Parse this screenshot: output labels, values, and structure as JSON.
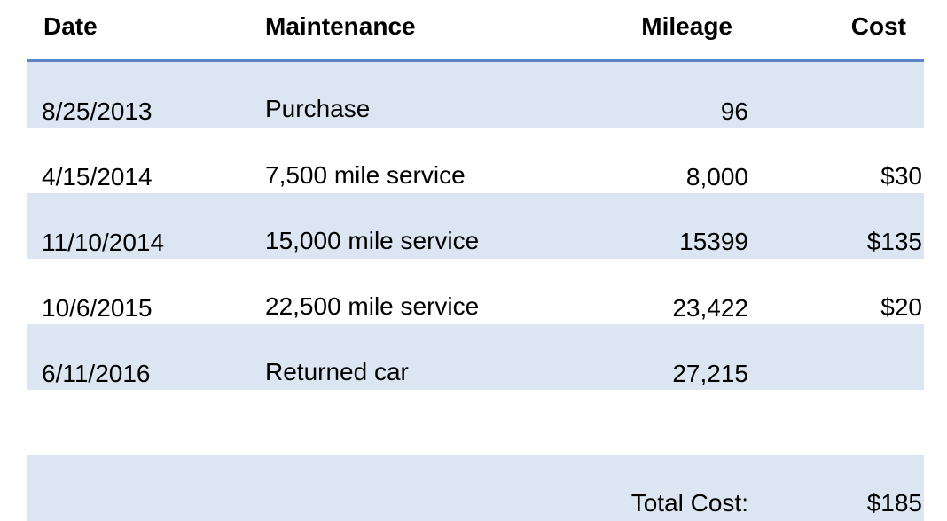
{
  "headers": {
    "date": "Date",
    "maintenance": "Maintenance",
    "mileage": "Mileage",
    "cost": "Cost"
  },
  "rows": [
    {
      "date": "8/25/2013",
      "maintenance": "Purchase",
      "mileage": "96",
      "cost": ""
    },
    {
      "date": "4/15/2014",
      "maintenance": "7,500 mile service",
      "mileage": "8,000",
      "cost": "$30"
    },
    {
      "date": "11/10/2014",
      "maintenance": "15,000 mile service",
      "mileage": "15399",
      "cost": "$135"
    },
    {
      "date": "10/6/2015",
      "maintenance": "22,500 mile service",
      "mileage": "23,422",
      "cost": "$20"
    },
    {
      "date": "6/11/2016",
      "maintenance": "Returned car",
      "mileage": "27,215",
      "cost": ""
    }
  ],
  "total": {
    "label": "Total Cost:",
    "value": "$185"
  },
  "colors": {
    "header_rule": "#5b85c8",
    "row_shade": "#dce6f2"
  }
}
